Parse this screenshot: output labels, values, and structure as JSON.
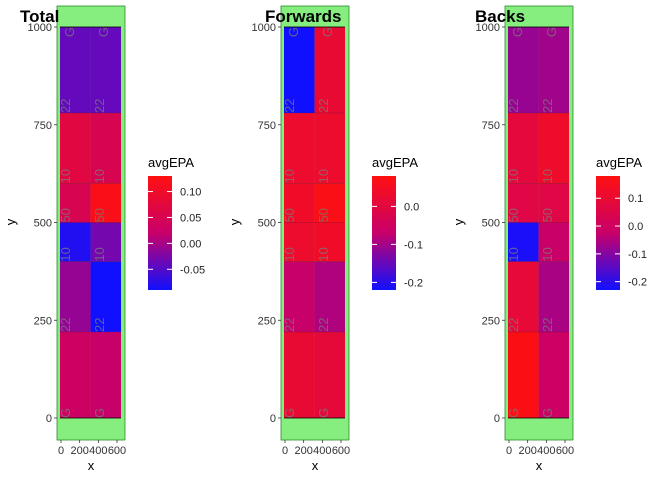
{
  "colors": {
    "low": "#1010ff",
    "mid": "#c8006a",
    "high": "#ff1010",
    "field": "#86ee7e",
    "field_border": "#2a8a2a"
  },
  "field_markings": [
    "G",
    "22",
    "10",
    "50",
    "10",
    "22",
    "G"
  ],
  "legend_title": "avgEPA",
  "chart_data": [
    {
      "type": "heatmap",
      "title": "Total",
      "xlabel": "x",
      "ylabel": "y",
      "xlim": [
        0,
        533
      ],
      "ylim": [
        0,
        1000
      ],
      "xticks": [
        0,
        200,
        400,
        600
      ],
      "yticks": [
        0,
        250,
        500,
        750,
        1000
      ],
      "xtick_labels": [
        "0",
        "200",
        "400",
        "600"
      ],
      "ytick_labels": [
        "0",
        "250",
        "500",
        "750",
        "1000"
      ],
      "color_range": [
        -0.09,
        0.13
      ],
      "legend_ticks": [
        0.1,
        0.05,
        0.0,
        -0.05
      ],
      "legend_tick_labels": [
        "0.10",
        "0.05",
        "0.00",
        "-0.05"
      ],
      "cells": [
        {
          "x0": 0,
          "x1": 267,
          "y0": 780,
          "y1": 1000,
          "v": -0.04
        },
        {
          "x0": 267,
          "x1": 533,
          "y0": 780,
          "y1": 1000,
          "v": -0.04
        },
        {
          "x0": 0,
          "x1": 267,
          "y0": 600,
          "y1": 780,
          "v": 0.07
        },
        {
          "x0": 267,
          "x1": 533,
          "y0": 600,
          "y1": 780,
          "v": 0.05
        },
        {
          "x0": 0,
          "x1": 267,
          "y0": 500,
          "y1": 600,
          "v": 0.05
        },
        {
          "x0": 267,
          "x1": 533,
          "y0": 500,
          "y1": 600,
          "v": 0.12
        },
        {
          "x0": 0,
          "x1": 267,
          "y0": 400,
          "y1": 500,
          "v": -0.08
        },
        {
          "x0": 267,
          "x1": 533,
          "y0": 400,
          "y1": 500,
          "v": -0.03
        },
        {
          "x0": 0,
          "x1": 267,
          "y0": 220,
          "y1": 400,
          "v": -0.01
        },
        {
          "x0": 267,
          "x1": 533,
          "y0": 220,
          "y1": 400,
          "v": -0.09
        },
        {
          "x0": 0,
          "x1": 267,
          "y0": 0,
          "y1": 220,
          "v": 0.03
        },
        {
          "x0": 267,
          "x1": 533,
          "y0": 0,
          "y1": 220,
          "v": 0.02
        }
      ]
    },
    {
      "type": "heatmap",
      "title": "Forwards",
      "xlabel": "x",
      "ylabel": "y",
      "xlim": [
        0,
        533
      ],
      "ylim": [
        0,
        1000
      ],
      "xticks": [
        0,
        200,
        400,
        600
      ],
      "yticks": [
        0,
        250,
        500,
        750,
        1000
      ],
      "xtick_labels": [
        "0",
        "200",
        "400",
        "600"
      ],
      "ytick_labels": [
        "0",
        "250",
        "500",
        "750",
        "1000"
      ],
      "color_range": [
        -0.22,
        0.08
      ],
      "legend_ticks": [
        0.0,
        -0.1,
        -0.2
      ],
      "legend_tick_labels": [
        "0.0",
        "-0.1",
        "-0.2"
      ],
      "cells": [
        {
          "x0": 0,
          "x1": 267,
          "y0": 780,
          "y1": 1000,
          "v": -0.22
        },
        {
          "x0": 267,
          "x1": 533,
          "y0": 780,
          "y1": 1000,
          "v": 0.02
        },
        {
          "x0": 0,
          "x1": 267,
          "y0": 600,
          "y1": 780,
          "v": 0.03
        },
        {
          "x0": 267,
          "x1": 533,
          "y0": 600,
          "y1": 780,
          "v": 0.03
        },
        {
          "x0": 0,
          "x1": 267,
          "y0": 500,
          "y1": 600,
          "v": 0.04
        },
        {
          "x0": 267,
          "x1": 533,
          "y0": 500,
          "y1": 600,
          "v": 0.07
        },
        {
          "x0": 0,
          "x1": 267,
          "y0": 400,
          "y1": 500,
          "v": 0.03
        },
        {
          "x0": 267,
          "x1": 533,
          "y0": 400,
          "y1": 500,
          "v": 0.04
        },
        {
          "x0": 0,
          "x1": 267,
          "y0": 220,
          "y1": 400,
          "v": -0.07
        },
        {
          "x0": 267,
          "x1": 533,
          "y0": 220,
          "y1": 400,
          "v": -0.09
        },
        {
          "x0": 0,
          "x1": 267,
          "y0": 0,
          "y1": 220,
          "v": 0.02
        },
        {
          "x0": 267,
          "x1": 533,
          "y0": 0,
          "y1": 220,
          "v": 0.01
        }
      ]
    },
    {
      "type": "heatmap",
      "title": "Backs",
      "xlabel": "x",
      "ylabel": "y",
      "xlim": [
        0,
        533
      ],
      "ylim": [
        0,
        1000
      ],
      "xticks": [
        0,
        200,
        400,
        600
      ],
      "yticks": [
        0,
        250,
        500,
        750,
        1000
      ],
      "xtick_labels": [
        "0",
        "200",
        "400",
        "600"
      ],
      "ytick_labels": [
        "0",
        "250",
        "500",
        "750",
        "1000"
      ],
      "color_range": [
        -0.23,
        0.18
      ],
      "legend_ticks": [
        0.1,
        0.0,
        -0.1,
        -0.2
      ],
      "legend_tick_labels": [
        "0.1",
        "0.0",
        "-0.1",
        "-0.2"
      ],
      "cells": [
        {
          "x0": 0,
          "x1": 267,
          "y0": 780,
          "y1": 1000,
          "v": -0.08
        },
        {
          "x0": 267,
          "x1": 533,
          "y0": 780,
          "y1": 1000,
          "v": -0.07
        },
        {
          "x0": 0,
          "x1": 267,
          "y0": 600,
          "y1": 780,
          "v": 0.08
        },
        {
          "x0": 267,
          "x1": 533,
          "y0": 600,
          "y1": 780,
          "v": 0.12
        },
        {
          "x0": 0,
          "x1": 267,
          "y0": 500,
          "y1": 600,
          "v": 0.06
        },
        {
          "x0": 267,
          "x1": 533,
          "y0": 500,
          "y1": 600,
          "v": 0.06
        },
        {
          "x0": 0,
          "x1": 267,
          "y0": 400,
          "y1": 500,
          "v": -0.22
        },
        {
          "x0": 267,
          "x1": 533,
          "y0": 400,
          "y1": 500,
          "v": -0.02
        },
        {
          "x0": 0,
          "x1": 267,
          "y0": 220,
          "y1": 400,
          "v": 0.09
        },
        {
          "x0": 267,
          "x1": 533,
          "y0": 220,
          "y1": 400,
          "v": -0.06
        },
        {
          "x0": 0,
          "x1": 267,
          "y0": 0,
          "y1": 220,
          "v": 0.17
        },
        {
          "x0": 267,
          "x1": 533,
          "y0": 0,
          "y1": 220,
          "v": -0.01
        }
      ]
    }
  ]
}
